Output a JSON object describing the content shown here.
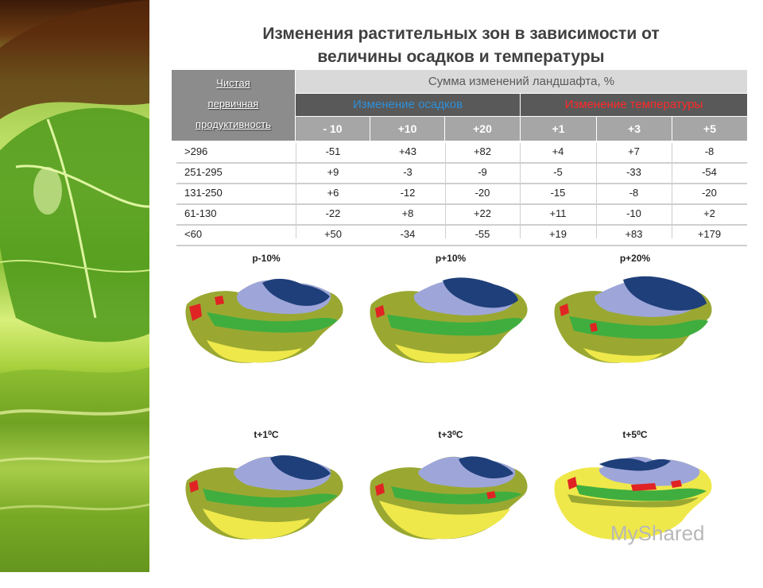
{
  "title": {
    "line1": "Изменения растительных зон в зависимости от",
    "line2": "величины осадков и температуры"
  },
  "table": {
    "corner": [
      "Чистая",
      "первичная",
      "продуктивность"
    ],
    "sum_header": "Сумма изменений ландшафта, %",
    "precip_header": "Изменение осадков",
    "temp_header": "Изменение температуры",
    "subheaders": [
      "- 10",
      "+10",
      "+20",
      "+1",
      "+3",
      "+5"
    ],
    "rows": [
      {
        "label": ">296",
        "values": [
          "-51",
          "+43",
          "+82",
          "+4",
          "+7",
          "-8"
        ]
      },
      {
        "label": "251-295",
        "values": [
          "+9",
          "-3",
          "-9",
          "-5",
          "-33",
          "-54"
        ]
      },
      {
        "label": "131-250",
        "values": [
          "+6",
          "-12",
          "-20",
          "-15",
          "-8",
          "-20"
        ]
      },
      {
        "label": "61-130",
        "values": [
          "-22",
          "+8",
          "+22",
          "+11",
          "-10",
          "+2"
        ]
      },
      {
        "label": "<60",
        "values": [
          "+50",
          "-34",
          "-55",
          "+19",
          "+83",
          "+179"
        ]
      }
    ]
  },
  "maps": [
    {
      "label": "p-10%"
    },
    {
      "label": "p+10%"
    },
    {
      "label": "p+20%"
    },
    {
      "label": "t+1⁰C"
    },
    {
      "label": "t+3⁰C"
    },
    {
      "label": "t+5⁰C"
    }
  ],
  "watermark": "MyShared",
  "colors": {
    "header_gray": "#8c8c8c",
    "precip_blue": "#2e8fd8",
    "temp_red": "#ff2a2a",
    "zone_navy": "#1f3f7a",
    "zone_lavender": "#9ea6d9",
    "zone_green": "#3fae3f",
    "zone_olive": "#9aa832",
    "zone_yellow": "#efe84a",
    "zone_red": "#e02424"
  }
}
